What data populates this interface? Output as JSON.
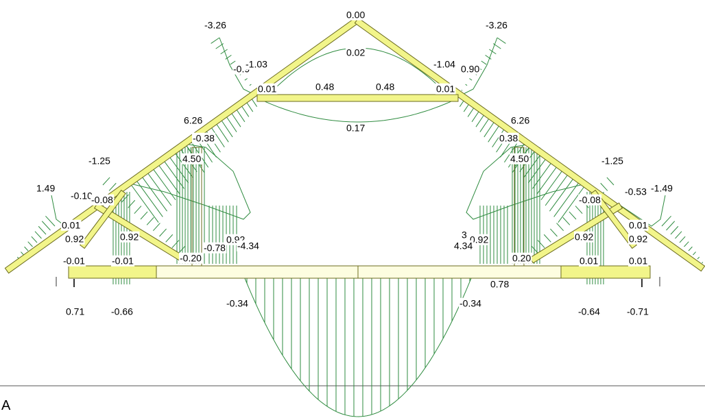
{
  "section_label": "A",
  "colors": {
    "member_fill": "#f2f58a",
    "member_stroke": "#6b6b1e",
    "diagram": "#2e8b3f",
    "frame_fill": "#fdfde0",
    "label_text": "#000000"
  },
  "labels": [
    {
      "text": "0.00"
    },
    {
      "text": "0.02"
    },
    {
      "text": "-3.26"
    },
    {
      "text": "-3.26"
    },
    {
      "text": "-0.9"
    },
    {
      "text": "-1.03"
    },
    {
      "text": "-1.04"
    },
    {
      "text": "0.90"
    },
    {
      "text": "0.01"
    },
    {
      "text": "0.01"
    },
    {
      "text": "0.48"
    },
    {
      "text": "0.48"
    },
    {
      "text": "0.17"
    },
    {
      "text": "6.26"
    },
    {
      "text": "6.26"
    },
    {
      "text": "-0.38"
    },
    {
      "text": "0.38"
    },
    {
      "text": "4.50"
    },
    {
      "text": "4.50"
    },
    {
      "text": "-1.25"
    },
    {
      "text": "-1.25"
    },
    {
      "text": "1.49"
    },
    {
      "text": "-1.49"
    },
    {
      "text": "-0.10"
    },
    {
      "text": "-0.08"
    },
    {
      "text": "-0.08"
    },
    {
      "text": "-0.53"
    },
    {
      "text": "0.01"
    },
    {
      "text": "0.01"
    },
    {
      "text": "0.92"
    },
    {
      "text": "0.92"
    },
    {
      "text": "0.92"
    },
    {
      "text": "0.92"
    },
    {
      "text": "0.92"
    },
    {
      "text": "0.92"
    },
    {
      "text": "-0.78"
    },
    {
      "text": "-4.34"
    },
    {
      "text": "4.34"
    },
    {
      "text": "3"
    },
    {
      "text": "-0.20"
    },
    {
      "text": "0.20"
    },
    {
      "text": "-0.01"
    },
    {
      "text": "-0.01"
    },
    {
      "text": "0.01"
    },
    {
      "text": "0.01"
    },
    {
      "text": "0.78"
    },
    {
      "text": "-0.34"
    },
    {
      "text": "-0.34"
    },
    {
      "text": "0.71"
    },
    {
      "text": "-0.66"
    },
    {
      "text": "-0.64"
    },
    {
      "text": "-0.71"
    }
  ]
}
